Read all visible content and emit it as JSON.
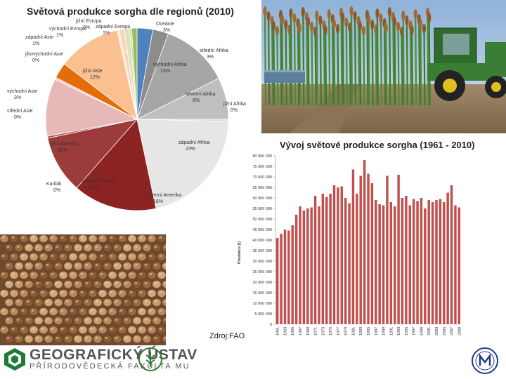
{
  "source_text": "Zdroj:FAO",
  "logo": {
    "line1": "GEOGRAFICKÝ ÚSTAV",
    "line2": "PŘÍRODOVĚDECKÁ FAKULTA MU"
  },
  "colors": {
    "bar": "#c0504d",
    "arrow": "#5d7f99"
  },
  "chart_data": [
    {
      "type": "pie",
      "title": "Světová produkce sorgha dle regionů (2010)",
      "slices": [
        {
          "name": "Oceánie",
          "value": 3,
          "label": "Oceánie\n3%",
          "color": "#4f81bd"
        },
        {
          "name": "střední Afrika",
          "value": 3,
          "label": "střední Afrika\n3%",
          "color": "#8c8c8c"
        },
        {
          "name": "východní Afrika",
          "value": 13,
          "label": "východní Afrika\n13%",
          "color": "#a6a6a6"
        },
        {
          "name": "severní Afrika",
          "value": 8,
          "label": "severní Afrika\n8%",
          "color": "#bfbfbf"
        },
        {
          "name": "jižní Afrika",
          "value": 0,
          "label": "jižní Afrika\n0%",
          "color": "#d9d9d9"
        },
        {
          "name": "západní Afrika",
          "value": 23,
          "label": "západní Afrika\n23%",
          "color": "#e6e6e6"
        },
        {
          "name": "severní Amerika",
          "value": 16,
          "label": "severní Amerika\n16%",
          "color": "#8b2323"
        },
        {
          "name": "střední Amerika",
          "value": 11,
          "label": "střední Amerika\n11%",
          "color": "#9b3b3b"
        },
        {
          "name": "Karibik",
          "value": 0,
          "label": "Karibik\n0%",
          "color": "#b05555"
        },
        {
          "name": "jižní Amerika",
          "value": 11,
          "label": "jižní Amerika\n11%",
          "color": "#e6b8b7"
        },
        {
          "name": "střední Asie",
          "value": 0,
          "label": "střední Asie\n0%",
          "color": "#f4cccc"
        },
        {
          "name": "východní Asie",
          "value": 3,
          "label": "východní Asie\n3%",
          "color": "#e46c0a"
        },
        {
          "name": "jižní Asie",
          "value": 12,
          "label": "jižní Asie\n12%",
          "color": "#fac090"
        },
        {
          "name": "jihovýchodní Asie",
          "value": 0,
          "label": "jihovýchodní Asie\n0%",
          "color": "#fde9d9"
        },
        {
          "name": "západní Asie",
          "value": 1,
          "label": "západní Asie\n1%",
          "color": "#fcd5b4"
        },
        {
          "name": "východní Evropa",
          "value": 1,
          "label": "východní Evropa\n1%",
          "color": "#d7e4bc"
        },
        {
          "name": "jižní Evropa",
          "value": 0,
          "label": "jižní Evropa\n0%",
          "color": "#c3d69b"
        },
        {
          "name": "západní Evropa",
          "value": 1,
          "label": "západní Evropa\n1%",
          "color": "#9bbb59"
        }
      ]
    },
    {
      "type": "bar",
      "title": "Vývoj světové produkce sorgha (1961 - 2010)",
      "ylabel": "Produkce (t)",
      "xlabel": "",
      "ylim": [
        0,
        80000000
      ],
      "yticks": [
        "0",
        "5 000 000",
        "10 000 000",
        "15 000 000",
        "20 000 000",
        "25 000 000",
        "30 000 000",
        "35 000 000",
        "40 000 000",
        "45 000 000",
        "50 000 000",
        "55 000 000",
        "60 000 000",
        "65 000 000",
        "70 000 000",
        "75 000 000",
        "80 000 000"
      ],
      "xtick_labels": [
        "1961",
        "1963",
        "1965",
        "1967",
        "1969",
        "1971",
        "1973",
        "1975",
        "1977",
        "1979",
        "1981",
        "1983",
        "1985",
        "1987",
        "1989",
        "1991",
        "1993",
        "1995",
        "1997",
        "1999",
        "2001",
        "2003",
        "2005",
        "2007",
        "2009"
      ],
      "categories": [
        "1961",
        "1962",
        "1963",
        "1964",
        "1965",
        "1966",
        "1967",
        "1968",
        "1969",
        "1970",
        "1971",
        "1972",
        "1973",
        "1974",
        "1975",
        "1976",
        "1977",
        "1978",
        "1979",
        "1980",
        "1981",
        "1982",
        "1983",
        "1984",
        "1985",
        "1986",
        "1987",
        "1988",
        "1989",
        "1990",
        "1991",
        "1992",
        "1993",
        "1994",
        "1995",
        "1996",
        "1997",
        "1998",
        "1999",
        "2000",
        "2001",
        "2002",
        "2003",
        "2005",
        "2006",
        "2007",
        "2008",
        "2009",
        "2010"
      ],
      "values": [
        41000000,
        43000000,
        45000000,
        44500000,
        47000000,
        52000000,
        56000000,
        54000000,
        55000000,
        55500000,
        61000000,
        56000000,
        62000000,
        60500000,
        62000000,
        66000000,
        65000000,
        65500000,
        60000000,
        57500000,
        73500000,
        62000000,
        70500000,
        78000000,
        71500000,
        67000000,
        59000000,
        57000000,
        56500000,
        70500000,
        58000000,
        56000000,
        71000000,
        60000000,
        61000000,
        56500000,
        59500000,
        58500000,
        60000000,
        55000000,
        59000000,
        58000000,
        59000000,
        59500000,
        58000000,
        62500000,
        66000000,
        56500000,
        55500000
      ]
    }
  ]
}
